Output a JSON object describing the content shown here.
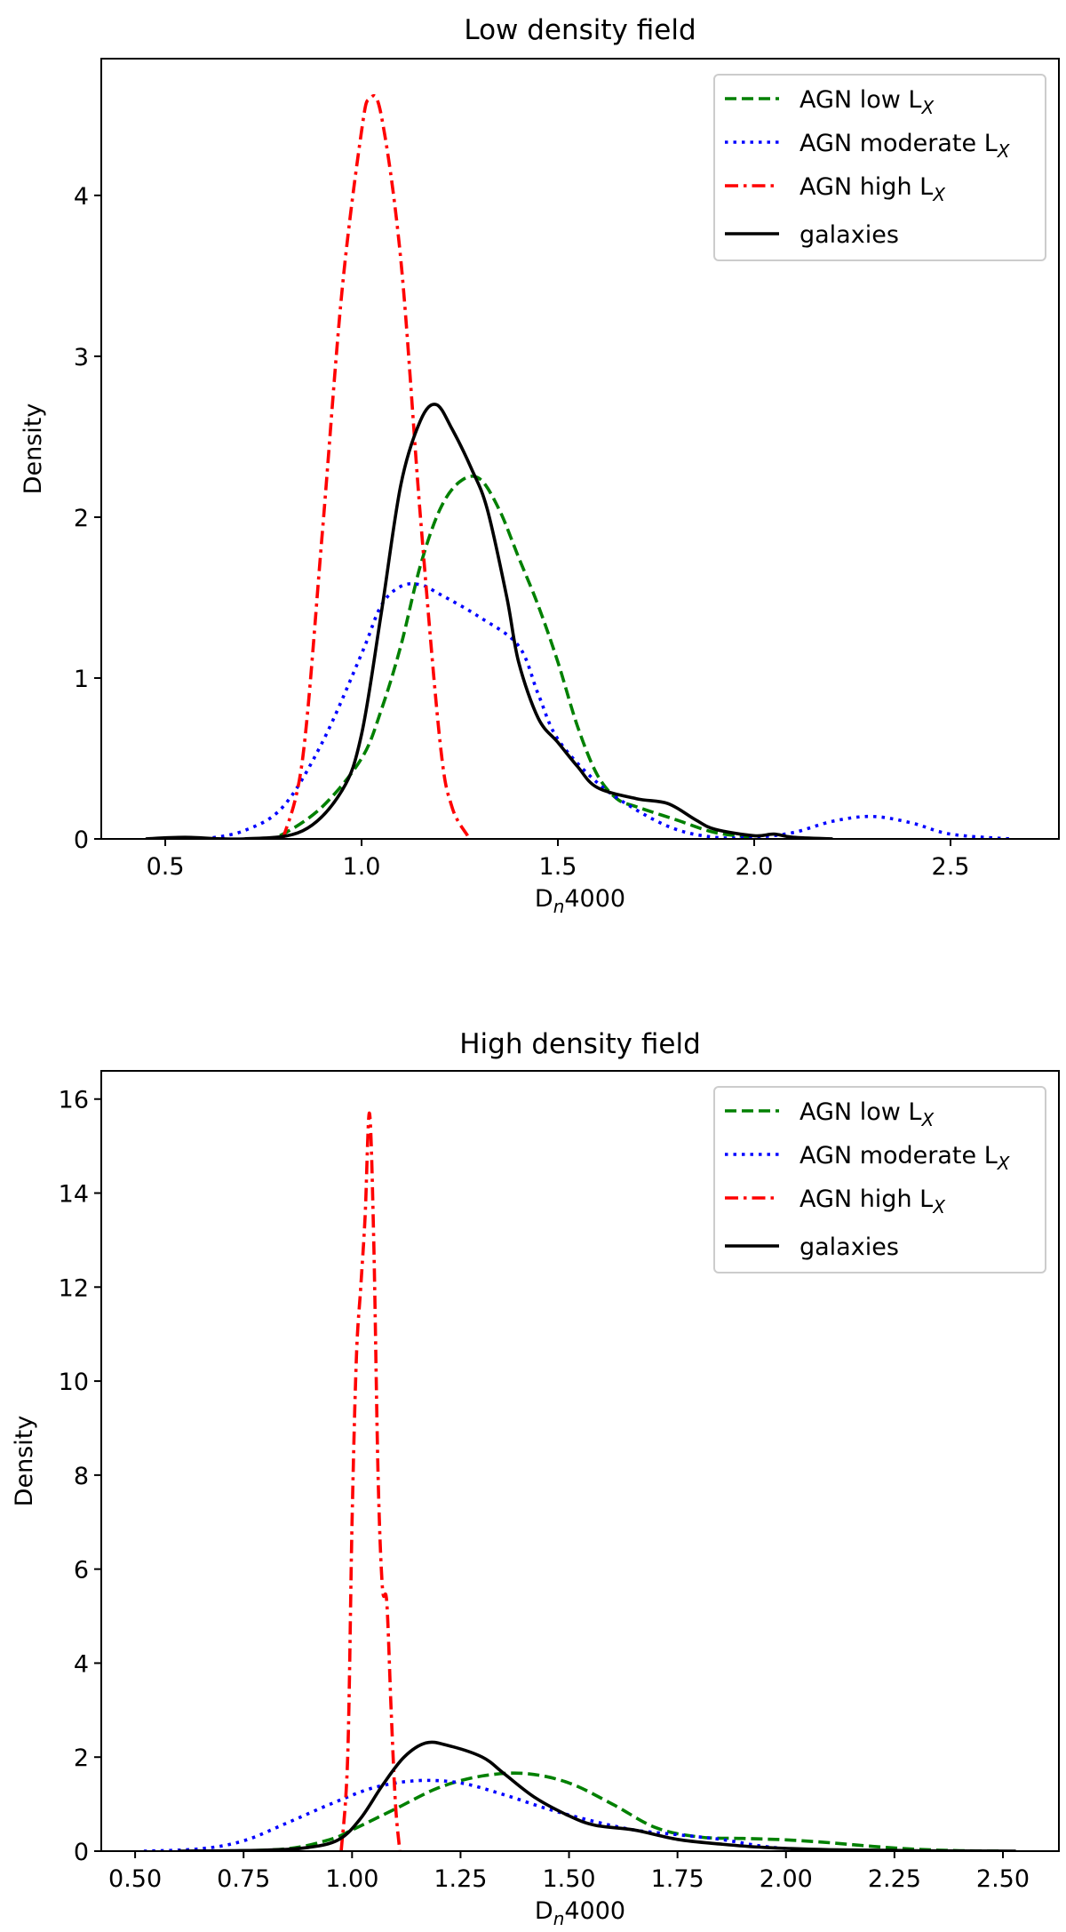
{
  "chart_data": [
    {
      "type": "line",
      "title": "Low density field",
      "xlabel": {
        "main": "D",
        "sub": "n",
        "rest": "4000"
      },
      "ylabel": "Density",
      "xlim": [
        0.337,
        2.776
      ],
      "ylim": [
        0,
        4.85
      ],
      "xticks": [
        "0.5",
        "1.0",
        "1.5",
        "2.0",
        "2.5"
      ],
      "yticks": [
        "0",
        "1",
        "2",
        "3",
        "4"
      ],
      "grid": false,
      "legend_position": "top-right",
      "series": [
        {
          "name": "AGN low L",
          "sub": "X",
          "color": "#008000",
          "style": "dashed",
          "x": [
            0.75,
            0.8,
            0.9,
            1.0,
            1.05,
            1.1,
            1.15,
            1.2,
            1.25,
            1.3,
            1.35,
            1.4,
            1.45,
            1.5,
            1.55,
            1.6,
            1.65,
            1.7,
            1.8,
            1.9,
            2.0
          ],
          "y": [
            0,
            0.03,
            0.2,
            0.5,
            0.8,
            1.2,
            1.7,
            2.05,
            2.22,
            2.24,
            2.05,
            1.75,
            1.45,
            1.1,
            0.7,
            0.4,
            0.25,
            0.2,
            0.12,
            0.04,
            0.01
          ]
        },
        {
          "name": "AGN moderate L",
          "sub": "X",
          "color": "#0000ff",
          "style": "dotted",
          "x": [
            0.6,
            0.7,
            0.8,
            0.9,
            1.0,
            1.05,
            1.1,
            1.15,
            1.2,
            1.3,
            1.4,
            1.45,
            1.5,
            1.6,
            1.7,
            1.8,
            1.9,
            2.0,
            2.1,
            2.2,
            2.3,
            2.4,
            2.5,
            2.65
          ],
          "y": [
            0,
            0.05,
            0.2,
            0.6,
            1.15,
            1.45,
            1.57,
            1.58,
            1.52,
            1.38,
            1.2,
            0.9,
            0.62,
            0.35,
            0.18,
            0.06,
            0.01,
            0.01,
            0.04,
            0.11,
            0.14,
            0.1,
            0.03,
            0
          ]
        },
        {
          "name": "AGN high L",
          "sub": "X",
          "color": "#ff0000",
          "style": "dashdot",
          "x": [
            0.8,
            0.85,
            0.9,
            0.95,
            1.0,
            1.02,
            1.05,
            1.1,
            1.15,
            1.2,
            1.23,
            1.27
          ],
          "y": [
            0,
            0.5,
            1.9,
            3.4,
            4.4,
            4.6,
            4.5,
            3.6,
            2.0,
            0.6,
            0.2,
            0.02
          ]
        },
        {
          "name": "galaxies",
          "sub": "",
          "color": "#000000",
          "style": "solid",
          "x": [
            0.45,
            0.55,
            0.7,
            0.85,
            0.95,
            1.0,
            1.05,
            1.1,
            1.15,
            1.19,
            1.23,
            1.28,
            1.32,
            1.37,
            1.4,
            1.45,
            1.5,
            1.55,
            1.6,
            1.7,
            1.78,
            1.85,
            1.9,
            2.0,
            2.05,
            2.1,
            2.2
          ],
          "y": [
            0,
            0.01,
            0,
            0.05,
            0.3,
            0.65,
            1.4,
            2.2,
            2.6,
            2.7,
            2.55,
            2.3,
            2.05,
            1.5,
            1.1,
            0.75,
            0.6,
            0.45,
            0.32,
            0.25,
            0.22,
            0.12,
            0.06,
            0.02,
            0.03,
            0.01,
            0
          ]
        }
      ]
    },
    {
      "type": "line",
      "title": "High density field",
      "xlabel": {
        "main": "D",
        "sub": "n",
        "rest": "4000"
      },
      "ylabel": "Density",
      "xlim": [
        0.422,
        2.629
      ],
      "ylim": [
        0,
        16.6
      ],
      "xticks": [
        "0.50",
        "0.75",
        "1.00",
        "1.25",
        "1.50",
        "1.75",
        "2.00",
        "2.25",
        "2.50"
      ],
      "yticks": [
        "0",
        "2",
        "4",
        "6",
        "8",
        "10",
        "12",
        "14",
        "16"
      ],
      "grid": false,
      "legend_position": "top-right",
      "series": [
        {
          "name": "AGN low L",
          "sub": "X",
          "color": "#008000",
          "style": "dashed",
          "x": [
            0.7,
            0.85,
            0.95,
            1.0,
            1.1,
            1.2,
            1.3,
            1.4,
            1.5,
            1.6,
            1.7,
            1.8,
            1.9,
            2.0,
            2.1,
            2.2,
            2.3,
            2.4,
            2.5
          ],
          "y": [
            0,
            0.05,
            0.25,
            0.45,
            0.9,
            1.35,
            1.6,
            1.65,
            1.45,
            1.0,
            0.5,
            0.3,
            0.27,
            0.24,
            0.18,
            0.1,
            0.04,
            0.01,
            0
          ]
        },
        {
          "name": "AGN moderate L",
          "sub": "X",
          "color": "#0000ff",
          "style": "dotted",
          "x": [
            0.52,
            0.65,
            0.75,
            0.85,
            0.95,
            1.05,
            1.15,
            1.25,
            1.35,
            1.45,
            1.55,
            1.65,
            1.75,
            1.85,
            1.95,
            2.05,
            2.2
          ],
          "y": [
            0,
            0.05,
            0.22,
            0.6,
            1.0,
            1.35,
            1.5,
            1.45,
            1.2,
            0.9,
            0.65,
            0.45,
            0.35,
            0.25,
            0.1,
            0.03,
            0
          ]
        },
        {
          "name": "AGN high L",
          "sub": "X",
          "color": "#ff0000",
          "style": "dashdot",
          "x": [
            0.975,
            0.99,
            1.0,
            1.01,
            1.02,
            1.03,
            1.04,
            1.05,
            1.06,
            1.07,
            1.08,
            1.09,
            1.1,
            1.11
          ],
          "y": [
            0,
            2,
            7,
            10.5,
            12,
            13.5,
            15.7,
            13,
            8,
            5.6,
            5.3,
            3,
            1,
            0
          ]
        },
        {
          "name": "galaxies",
          "sub": "",
          "color": "#000000",
          "style": "solid",
          "x": [
            0.6,
            0.8,
            0.9,
            0.97,
            1.02,
            1.07,
            1.12,
            1.17,
            1.22,
            1.3,
            1.35,
            1.42,
            1.5,
            1.56,
            1.65,
            1.75,
            1.85,
            1.95,
            2.1,
            2.3,
            2.53
          ],
          "y": [
            0,
            0.02,
            0.08,
            0.25,
            0.7,
            1.4,
            2.0,
            2.3,
            2.25,
            2.0,
            1.65,
            1.15,
            0.75,
            0.55,
            0.45,
            0.25,
            0.15,
            0.08,
            0.03,
            0.01,
            0
          ]
        }
      ]
    }
  ]
}
